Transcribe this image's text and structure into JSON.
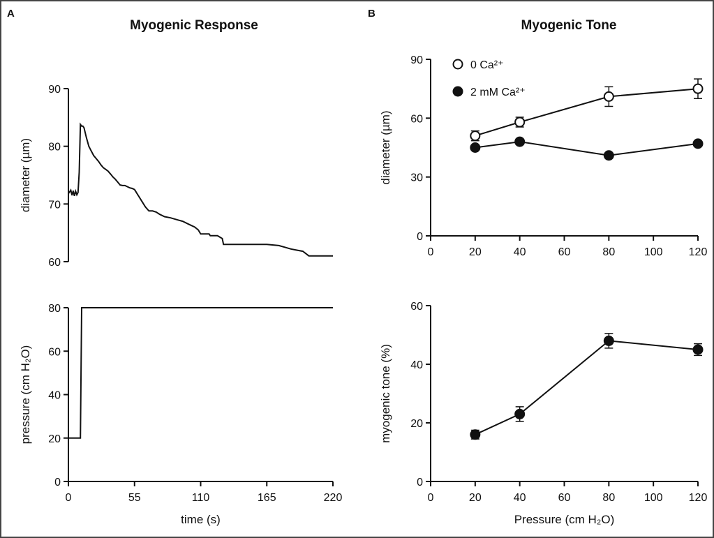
{
  "panels": {
    "a": {
      "letter": "A",
      "title": "Myogenic Response"
    },
    "b": {
      "letter": "B",
      "title": "Myogenic Tone"
    }
  },
  "chart_data": [
    {
      "id": "a-diameter",
      "type": "line",
      "ylabel": "diameter (µm)",
      "xlim": [
        0,
        220
      ],
      "ylim": [
        60,
        90
      ],
      "yticks": [
        60,
        70,
        80,
        90
      ],
      "series": [
        {
          "x": [
            0,
            2,
            3,
            4,
            5,
            6,
            7,
            8,
            9,
            10,
            11,
            12,
            13,
            15,
            17,
            19,
            21,
            23,
            25,
            27,
            29,
            31,
            33,
            35,
            37,
            39,
            41,
            43,
            45,
            47,
            49,
            51,
            53,
            55,
            58,
            61,
            64,
            67,
            70,
            73,
            76,
            80,
            85,
            90,
            95,
            100,
            105,
            108,
            110,
            117,
            118,
            124,
            128,
            129,
            135,
            150,
            165,
            175,
            180,
            185,
            190,
            195,
            200,
            210,
            220
          ],
          "y": [
            71.8,
            72.4,
            71.5,
            72.3,
            71.4,
            72.2,
            71.6,
            72.0,
            75.5,
            83.8,
            83.5,
            83.5,
            83.2,
            81.5,
            80.0,
            79.2,
            78.4,
            77.9,
            77.4,
            76.8,
            76.3,
            76.0,
            75.7,
            75.2,
            74.7,
            74.3,
            73.8,
            73.3,
            73.2,
            73.2,
            73.0,
            72.8,
            72.7,
            72.5,
            71.5,
            70.5,
            69.5,
            68.8,
            68.8,
            68.6,
            68.2,
            67.8,
            67.6,
            67.3,
            67.0,
            66.5,
            66.0,
            65.5,
            64.8,
            64.8,
            64.5,
            64.5,
            64.0,
            63.0,
            63.0,
            63.0,
            63.0,
            62.8,
            62.5,
            62.2,
            62.0,
            61.8,
            61.0,
            61.0,
            61.0
          ]
        }
      ]
    },
    {
      "id": "a-pressure",
      "type": "line",
      "xlabel": "time (s)",
      "ylabel": "pressure (cm H₂O)",
      "xlim": [
        0,
        220
      ],
      "ylim": [
        0,
        80
      ],
      "xticks": [
        0,
        55,
        110,
        165,
        220
      ],
      "yticks": [
        0,
        20,
        40,
        60,
        80
      ],
      "series": [
        {
          "x": [
            0,
            10,
            11,
            220
          ],
          "y": [
            20,
            20,
            80,
            80
          ]
        }
      ]
    },
    {
      "id": "b-diameter",
      "type": "line",
      "ylabel": "diameter (µm)",
      "xlim": [
        0,
        120
      ],
      "ylim": [
        0,
        90
      ],
      "xticks": [
        0,
        20,
        40,
        60,
        80,
        100,
        120
      ],
      "yticks": [
        0,
        30,
        60,
        90
      ],
      "legend": "top-left",
      "series": [
        {
          "name": "0 Ca²⁺",
          "marker": "open-circle",
          "x": [
            20,
            40,
            80,
            120
          ],
          "y": [
            51,
            58,
            71,
            75
          ],
          "err": [
            2.5,
            2.5,
            5,
            5
          ]
        },
        {
          "name": "2 mM Ca²⁺",
          "marker": "filled-circle",
          "x": [
            20,
            40,
            80,
            120
          ],
          "y": [
            45,
            48,
            41,
            47
          ],
          "err": [
            1,
            1,
            1,
            1
          ]
        }
      ]
    },
    {
      "id": "b-tone",
      "type": "line",
      "xlabel": "Pressure (cm H₂O)",
      "ylabel": "myogenic tone (%)",
      "xlim": [
        0,
        120
      ],
      "ylim": [
        0,
        60
      ],
      "xticks": [
        0,
        20,
        40,
        60,
        80,
        100,
        120
      ],
      "yticks": [
        0,
        20,
        40,
        60
      ],
      "series": [
        {
          "marker": "filled-circle",
          "x": [
            20,
            40,
            80,
            120
          ],
          "y": [
            16,
            23,
            48,
            45
          ],
          "err": [
            1.5,
            2.5,
            2.5,
            2
          ]
        }
      ]
    }
  ]
}
